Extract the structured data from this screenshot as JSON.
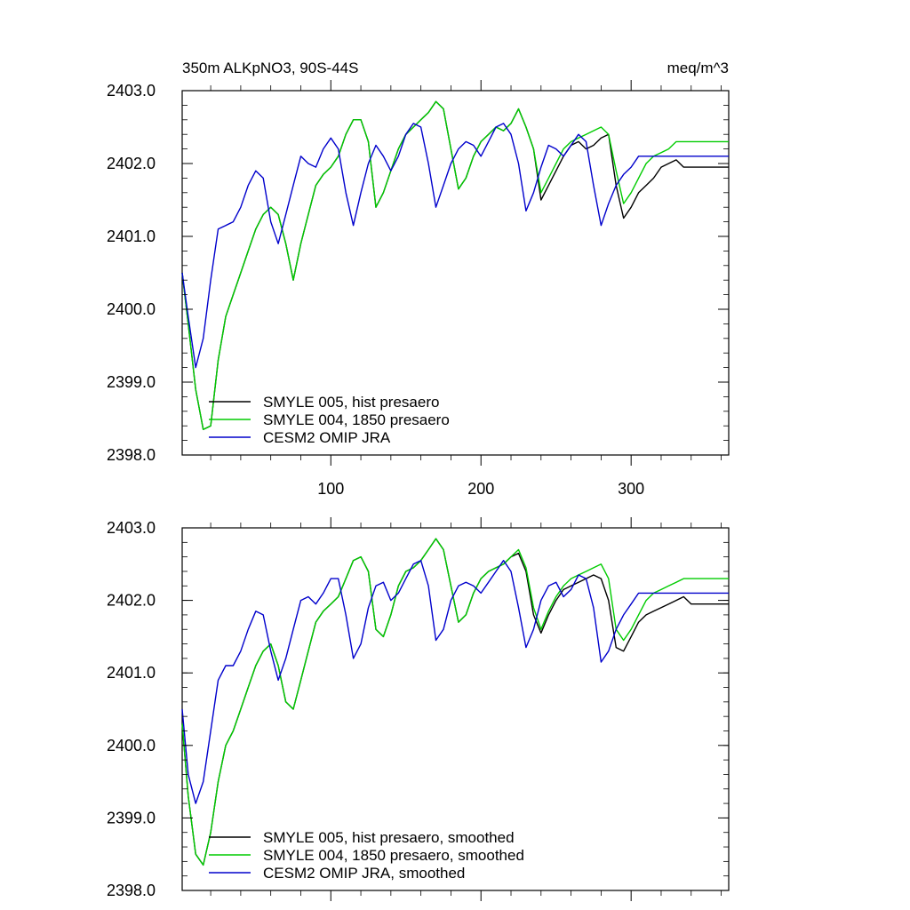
{
  "chart_data": [
    {
      "type": "line",
      "title": "350m ALKpNO3, 90S-44S",
      "units": "meq/m^3",
      "ylim": [
        2398.0,
        2403.0
      ],
      "xlim": [
        1,
        365
      ],
      "yticks": [
        "2398.0",
        "2399.0",
        "2400.0",
        "2401.0",
        "2402.0",
        "2403.0"
      ],
      "xticks": [
        "100",
        "200",
        "300"
      ],
      "x": [
        1,
        5,
        10,
        15,
        20,
        25,
        30,
        35,
        40,
        45,
        50,
        55,
        60,
        65,
        70,
        75,
        80,
        85,
        90,
        95,
        100,
        105,
        110,
        115,
        120,
        125,
        130,
        135,
        140,
        145,
        150,
        155,
        160,
        165,
        170,
        175,
        180,
        185,
        190,
        195,
        200,
        205,
        210,
        215,
        220,
        225,
        230,
        235,
        240,
        245,
        250,
        255,
        260,
        265,
        270,
        275,
        280,
        285,
        290,
        295,
        300,
        305,
        310,
        315,
        320,
        325,
        330,
        335,
        340,
        345,
        350,
        355,
        360,
        365
      ],
      "series": [
        {
          "name": "SMYLE 005, hist presaero",
          "color": "#000000",
          "values": [
            2400.5,
            2399.8,
            2398.9,
            2398.35,
            2398.4,
            2399.3,
            2399.9,
            2400.2,
            2400.5,
            2400.8,
            2401.1,
            2401.3,
            2401.4,
            2401.3,
            2400.9,
            2400.4,
            2400.9,
            2401.3,
            2401.7,
            2401.85,
            2401.95,
            2402.1,
            2402.4,
            2402.6,
            2402.6,
            2402.3,
            2401.4,
            2401.6,
            2401.9,
            2402.2,
            2402.4,
            2402.5,
            2402.6,
            2402.7,
            2402.85,
            2402.75,
            2402.2,
            2401.65,
            2401.8,
            2402.1,
            2402.3,
            2402.4,
            2402.5,
            2402.45,
            2402.55,
            2402.75,
            2402.5,
            2402.2,
            2401.5,
            2401.7,
            2401.9,
            2402.1,
            2402.25,
            2402.3,
            2402.2,
            2402.25,
            2402.35,
            2402.4,
            2401.7,
            2401.25,
            2401.4,
            2401.6,
            2401.7,
            2401.8,
            2401.95,
            2402.0,
            2402.05,
            2401.95,
            2401.95,
            2401.95,
            2401.95,
            2401.95,
            2401.95,
            2401.95
          ]
        },
        {
          "name": "SMYLE 004, 1850 presaero",
          "color": "#00cc00",
          "values": [
            2400.5,
            2399.8,
            2398.9,
            2398.35,
            2398.4,
            2399.3,
            2399.9,
            2400.2,
            2400.5,
            2400.8,
            2401.1,
            2401.3,
            2401.4,
            2401.3,
            2400.9,
            2400.4,
            2400.9,
            2401.3,
            2401.7,
            2401.85,
            2401.95,
            2402.1,
            2402.4,
            2402.6,
            2402.6,
            2402.3,
            2401.4,
            2401.6,
            2401.9,
            2402.2,
            2402.4,
            2402.5,
            2402.6,
            2402.7,
            2402.85,
            2402.75,
            2402.2,
            2401.65,
            2401.8,
            2402.1,
            2402.3,
            2402.4,
            2402.5,
            2402.45,
            2402.55,
            2402.75,
            2402.5,
            2402.2,
            2401.6,
            2401.8,
            2402.0,
            2402.2,
            2402.3,
            2402.35,
            2402.4,
            2402.45,
            2402.5,
            2402.4,
            2401.9,
            2401.45,
            2401.6,
            2401.8,
            2402.0,
            2402.1,
            2402.15,
            2402.2,
            2402.3,
            2402.3,
            2402.3,
            2402.3,
            2402.3,
            2402.3,
            2402.3,
            2402.3
          ]
        },
        {
          "name": "CESM2 OMIP JRA",
          "color": "#0000cc",
          "values": [
            2400.5,
            2399.9,
            2399.2,
            2399.6,
            2400.4,
            2401.1,
            2401.15,
            2401.2,
            2401.4,
            2401.7,
            2401.9,
            2401.8,
            2401.2,
            2400.9,
            2401.3,
            2401.7,
            2402.1,
            2402.0,
            2401.95,
            2402.2,
            2402.35,
            2402.2,
            2401.6,
            2401.15,
            2401.6,
            2402.0,
            2402.25,
            2402.1,
            2401.9,
            2402.1,
            2402.4,
            2402.55,
            2402.5,
            2402.0,
            2401.4,
            2401.7,
            2402.0,
            2402.2,
            2402.3,
            2402.25,
            2402.1,
            2402.3,
            2402.5,
            2402.55,
            2402.4,
            2402.0,
            2401.35,
            2401.6,
            2401.95,
            2402.25,
            2402.2,
            2402.1,
            2402.25,
            2402.4,
            2402.3,
            2401.7,
            2401.15,
            2401.45,
            2401.7,
            2401.85,
            2401.95,
            2402.1,
            2402.1,
            2402.1,
            2402.1,
            2402.1,
            2402.1,
            2402.1,
            2402.1,
            2402.1,
            2402.1,
            2402.1,
            2402.1,
            2402.1
          ]
        }
      ]
    },
    {
      "type": "line",
      "title": "",
      "units": "",
      "ylim": [
        2398.0,
        2403.0
      ],
      "xlim": [
        1,
        365
      ],
      "yticks": [
        "2398.0",
        "2399.0",
        "2400.0",
        "2401.0",
        "2402.0",
        "2403.0"
      ],
      "xticks": [],
      "x": [
        1,
        5,
        10,
        15,
        20,
        25,
        30,
        35,
        40,
        45,
        50,
        55,
        60,
        65,
        70,
        75,
        80,
        85,
        90,
        95,
        100,
        105,
        110,
        115,
        120,
        125,
        130,
        135,
        140,
        145,
        150,
        155,
        160,
        165,
        170,
        175,
        180,
        185,
        190,
        195,
        200,
        205,
        210,
        215,
        220,
        225,
        230,
        235,
        240,
        245,
        250,
        255,
        260,
        265,
        270,
        275,
        280,
        285,
        290,
        295,
        300,
        305,
        310,
        315,
        320,
        325,
        330,
        335,
        340,
        345,
        350,
        355,
        360,
        365
      ],
      "series": [
        {
          "name": "SMYLE 005, hist presaero, smoothed",
          "color": "#000000",
          "values": [
            2400.3,
            2399.3,
            2398.5,
            2398.35,
            2398.8,
            2399.5,
            2400.0,
            2400.2,
            2400.5,
            2400.8,
            2401.1,
            2401.3,
            2401.4,
            2401.1,
            2400.6,
            2400.5,
            2400.9,
            2401.3,
            2401.7,
            2401.85,
            2401.95,
            2402.05,
            2402.3,
            2402.55,
            2402.6,
            2402.4,
            2401.6,
            2401.5,
            2401.8,
            2402.2,
            2402.4,
            2402.45,
            2402.55,
            2402.7,
            2402.85,
            2402.7,
            2402.2,
            2401.7,
            2401.8,
            2402.1,
            2402.3,
            2402.4,
            2402.45,
            2402.5,
            2402.6,
            2402.65,
            2402.4,
            2401.8,
            2401.55,
            2401.8,
            2402.0,
            2402.15,
            2402.2,
            2402.25,
            2402.3,
            2402.35,
            2402.3,
            2402.0,
            2401.35,
            2401.3,
            2401.5,
            2401.7,
            2401.8,
            2401.85,
            2401.9,
            2401.95,
            2402.0,
            2402.05,
            2401.95,
            2401.95,
            2401.95,
            2401.95,
            2401.95,
            2401.95
          ]
        },
        {
          "name": "SMYLE 004, 1850 presaero, smoothed",
          "color": "#00cc00",
          "values": [
            2400.3,
            2399.3,
            2398.5,
            2398.35,
            2398.8,
            2399.5,
            2400.0,
            2400.2,
            2400.5,
            2400.8,
            2401.1,
            2401.3,
            2401.4,
            2401.1,
            2400.6,
            2400.5,
            2400.9,
            2401.3,
            2401.7,
            2401.85,
            2401.95,
            2402.05,
            2402.3,
            2402.55,
            2402.6,
            2402.4,
            2401.6,
            2401.5,
            2401.8,
            2402.2,
            2402.4,
            2402.45,
            2402.55,
            2402.7,
            2402.85,
            2402.7,
            2402.2,
            2401.7,
            2401.8,
            2402.1,
            2402.3,
            2402.4,
            2402.45,
            2402.5,
            2402.6,
            2402.7,
            2402.45,
            2401.9,
            2401.6,
            2401.85,
            2402.05,
            2402.2,
            2402.3,
            2402.35,
            2402.4,
            2402.45,
            2402.5,
            2402.3,
            2401.6,
            2401.45,
            2401.6,
            2401.8,
            2402.0,
            2402.1,
            2402.15,
            2402.2,
            2402.25,
            2402.3,
            2402.3,
            2402.3,
            2402.3,
            2402.3,
            2402.3,
            2402.3
          ]
        },
        {
          "name": "CESM2 OMIP JRA, smoothed",
          "color": "#0000cc",
          "values": [
            2400.5,
            2399.6,
            2399.2,
            2399.5,
            2400.2,
            2400.9,
            2401.1,
            2401.1,
            2401.3,
            2401.6,
            2401.85,
            2401.8,
            2401.3,
            2400.9,
            2401.2,
            2401.6,
            2402.0,
            2402.05,
            2401.95,
            2402.1,
            2402.3,
            2402.3,
            2401.8,
            2401.2,
            2401.4,
            2401.9,
            2402.2,
            2402.25,
            2402.0,
            2402.1,
            2402.3,
            2402.5,
            2402.55,
            2402.2,
            2401.45,
            2401.6,
            2402.0,
            2402.2,
            2402.25,
            2402.2,
            2402.1,
            2402.25,
            2402.4,
            2402.55,
            2402.4,
            2401.9,
            2401.35,
            2401.6,
            2402.0,
            2402.2,
            2402.25,
            2402.05,
            2402.15,
            2402.35,
            2402.3,
            2401.9,
            2401.15,
            2401.3,
            2401.6,
            2401.8,
            2401.95,
            2402.1,
            2402.1,
            2402.1,
            2402.1,
            2402.1,
            2402.1,
            2402.1,
            2402.1,
            2402.1,
            2402.1,
            2402.1,
            2402.1,
            2402.1
          ]
        }
      ]
    }
  ]
}
